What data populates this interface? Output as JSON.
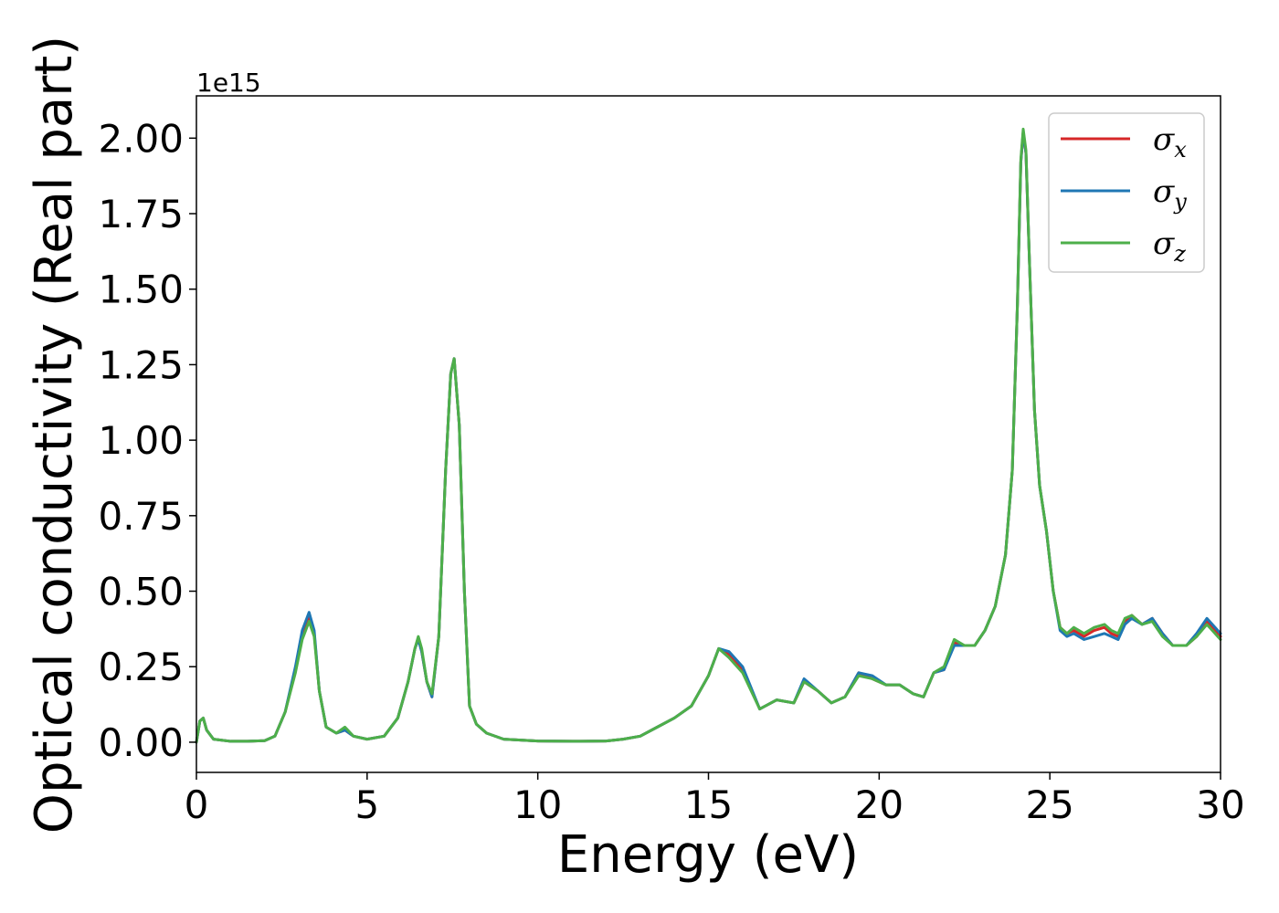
{
  "chart_data": {
    "type": "line",
    "title": "",
    "xlabel": "Energy (eV)",
    "ylabel": "Optical conductivity (Real part)",
    "y_offset_text": "1e15",
    "xlim": [
      0,
      30
    ],
    "ylim": [
      -0.1,
      2.14
    ],
    "xticks": [
      0,
      5,
      10,
      15,
      20,
      25,
      30
    ],
    "xtick_labels": [
      "0",
      "5",
      "10",
      "15",
      "20",
      "25",
      "30"
    ],
    "yticks": [
      0.0,
      0.25,
      0.5,
      0.75,
      1.0,
      1.25,
      1.5,
      1.75,
      2.0
    ],
    "ytick_labels": [
      "0.00",
      "0.25",
      "0.50",
      "0.75",
      "1.00",
      "1.25",
      "1.50",
      "1.75",
      "2.00"
    ],
    "grid": false,
    "legend_position": "top-right",
    "x": [
      0,
      0.1,
      0.2,
      0.3,
      0.5,
      1,
      1.5,
      2,
      2.3,
      2.6,
      2.9,
      3.1,
      3.3,
      3.45,
      3.6,
      3.8,
      4.1,
      4.35,
      4.6,
      5,
      5.5,
      5.9,
      6.2,
      6.4,
      6.5,
      6.6,
      6.75,
      6.9,
      7.1,
      7.3,
      7.45,
      7.55,
      7.7,
      7.85,
      8,
      8.2,
      8.5,
      9,
      10,
      11,
      12,
      12.5,
      13,
      13.5,
      14,
      14.5,
      14.8,
      15,
      15.3,
      15.6,
      16,
      16.5,
      17,
      17.5,
      17.8,
      18.2,
      18.6,
      19,
      19.4,
      19.8,
      20.2,
      20.6,
      21,
      21.3,
      21.6,
      21.9,
      22.2,
      22.5,
      22.8,
      23.1,
      23.4,
      23.7,
      23.9,
      24.05,
      24.15,
      24.22,
      24.3,
      24.4,
      24.55,
      24.7,
      24.9,
      25.1,
      25.3,
      25.5,
      25.7,
      26,
      26.3,
      26.6,
      26.8,
      27,
      27.2,
      27.4,
      27.7,
      28,
      28.3,
      28.6,
      29,
      29.3,
      29.6,
      30
    ],
    "series": [
      {
        "name": "σx",
        "color": "#d62728",
        "values": [
          0,
          0.07,
          0.08,
          0.04,
          0.01,
          0.003,
          0.003,
          0.005,
          0.02,
          0.1,
          0.24,
          0.36,
          0.42,
          0.36,
          0.17,
          0.05,
          0.03,
          0.04,
          0.02,
          0.01,
          0.02,
          0.08,
          0.2,
          0.31,
          0.345,
          0.3,
          0.2,
          0.15,
          0.35,
          0.9,
          1.22,
          1.27,
          1.05,
          0.5,
          0.12,
          0.06,
          0.03,
          0.01,
          0.004,
          0.003,
          0.004,
          0.01,
          0.02,
          0.05,
          0.08,
          0.12,
          0.18,
          0.22,
          0.31,
          0.29,
          0.24,
          0.11,
          0.14,
          0.13,
          0.2,
          0.17,
          0.13,
          0.15,
          0.23,
          0.21,
          0.19,
          0.19,
          0.16,
          0.15,
          0.23,
          0.24,
          0.33,
          0.32,
          0.32,
          0.37,
          0.45,
          0.62,
          0.9,
          1.45,
          1.92,
          2.02,
          1.95,
          1.6,
          1.1,
          0.85,
          0.7,
          0.5,
          0.38,
          0.36,
          0.37,
          0.35,
          0.37,
          0.38,
          0.36,
          0.35,
          0.4,
          0.42,
          0.39,
          0.41,
          0.36,
          0.32,
          0.32,
          0.35,
          0.4,
          0.35
        ]
      },
      {
        "name": "σy",
        "color": "#1f77b4",
        "values": [
          0,
          0.07,
          0.08,
          0.04,
          0.01,
          0.003,
          0.003,
          0.005,
          0.02,
          0.1,
          0.25,
          0.37,
          0.43,
          0.37,
          0.17,
          0.05,
          0.03,
          0.04,
          0.02,
          0.01,
          0.02,
          0.08,
          0.2,
          0.31,
          0.34,
          0.3,
          0.2,
          0.15,
          0.35,
          0.9,
          1.22,
          1.27,
          1.05,
          0.5,
          0.12,
          0.06,
          0.03,
          0.01,
          0.004,
          0.003,
          0.004,
          0.01,
          0.02,
          0.05,
          0.08,
          0.12,
          0.18,
          0.22,
          0.31,
          0.3,
          0.25,
          0.11,
          0.14,
          0.13,
          0.21,
          0.17,
          0.13,
          0.15,
          0.23,
          0.22,
          0.19,
          0.19,
          0.16,
          0.15,
          0.23,
          0.24,
          0.32,
          0.32,
          0.32,
          0.37,
          0.45,
          0.62,
          0.9,
          1.45,
          1.92,
          2.02,
          1.95,
          1.6,
          1.1,
          0.85,
          0.7,
          0.5,
          0.37,
          0.35,
          0.36,
          0.34,
          0.35,
          0.36,
          0.35,
          0.34,
          0.39,
          0.41,
          0.39,
          0.41,
          0.36,
          0.32,
          0.32,
          0.36,
          0.41,
          0.36
        ]
      },
      {
        "name": "σz",
        "color": "#4daf4a",
        "values": [
          0,
          0.07,
          0.08,
          0.04,
          0.01,
          0.003,
          0.003,
          0.005,
          0.02,
          0.1,
          0.23,
          0.34,
          0.4,
          0.35,
          0.17,
          0.05,
          0.03,
          0.05,
          0.02,
          0.01,
          0.02,
          0.08,
          0.2,
          0.31,
          0.35,
          0.31,
          0.2,
          0.16,
          0.35,
          0.9,
          1.22,
          1.27,
          1.05,
          0.5,
          0.12,
          0.06,
          0.03,
          0.01,
          0.004,
          0.003,
          0.004,
          0.01,
          0.02,
          0.05,
          0.08,
          0.12,
          0.18,
          0.22,
          0.31,
          0.28,
          0.23,
          0.11,
          0.14,
          0.13,
          0.2,
          0.17,
          0.13,
          0.15,
          0.22,
          0.21,
          0.19,
          0.19,
          0.16,
          0.15,
          0.23,
          0.25,
          0.34,
          0.32,
          0.32,
          0.37,
          0.45,
          0.62,
          0.9,
          1.45,
          1.93,
          2.03,
          1.96,
          1.6,
          1.1,
          0.85,
          0.7,
          0.5,
          0.38,
          0.36,
          0.38,
          0.36,
          0.38,
          0.39,
          0.37,
          0.36,
          0.41,
          0.42,
          0.39,
          0.4,
          0.35,
          0.32,
          0.32,
          0.35,
          0.39,
          0.34
        ]
      }
    ]
  }
}
